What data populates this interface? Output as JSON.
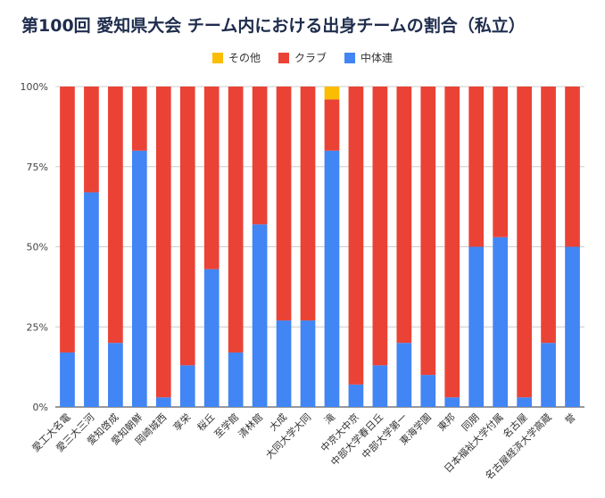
{
  "chart_data": {
    "type": "bar",
    "stacked": true,
    "normalized": true,
    "title": "第100回 愛知県大会 チーム内における出身チームの割合（私立）",
    "xlabel": "",
    "ylabel": "",
    "ylim": [
      0,
      100
    ],
    "yticks": [
      "0%",
      "25%",
      "50%",
      "75%",
      "100%"
    ],
    "legend_position": "top",
    "grid": true,
    "categories": [
      "愛工大名電",
      "愛三大三河",
      "愛知啓成",
      "愛知朝鮮",
      "岡崎城西",
      "享栄",
      "桜丘",
      "至学館",
      "清林館",
      "大成",
      "大同大学大同",
      "滝",
      "中京大中京",
      "中部大学春日丘",
      "中部大学第一",
      "東海学園",
      "東邦",
      "同朋",
      "日本福祉大学付属",
      "名古屋",
      "名古屋経済大学高蔵",
      "誉"
    ],
    "series": [
      {
        "name": "中体連",
        "color": "#4285f4",
        "values": [
          17,
          67,
          20,
          80,
          3,
          13,
          43,
          17,
          57,
          27,
          27,
          80,
          7,
          13,
          20,
          10,
          3,
          50,
          53,
          3,
          20,
          50
        ]
      },
      {
        "name": "クラブ",
        "color": "#ea4335",
        "values": [
          83,
          33,
          80,
          20,
          97,
          87,
          57,
          83,
          43,
          73,
          73,
          16,
          93,
          87,
          80,
          90,
          97,
          50,
          47,
          97,
          80,
          50
        ]
      },
      {
        "name": "その他",
        "color": "#fbbc04",
        "values": [
          0,
          0,
          0,
          0,
          0,
          0,
          0,
          0,
          0,
          0,
          0,
          4,
          0,
          0,
          0,
          0,
          0,
          0,
          0,
          0,
          0,
          0
        ]
      }
    ]
  }
}
